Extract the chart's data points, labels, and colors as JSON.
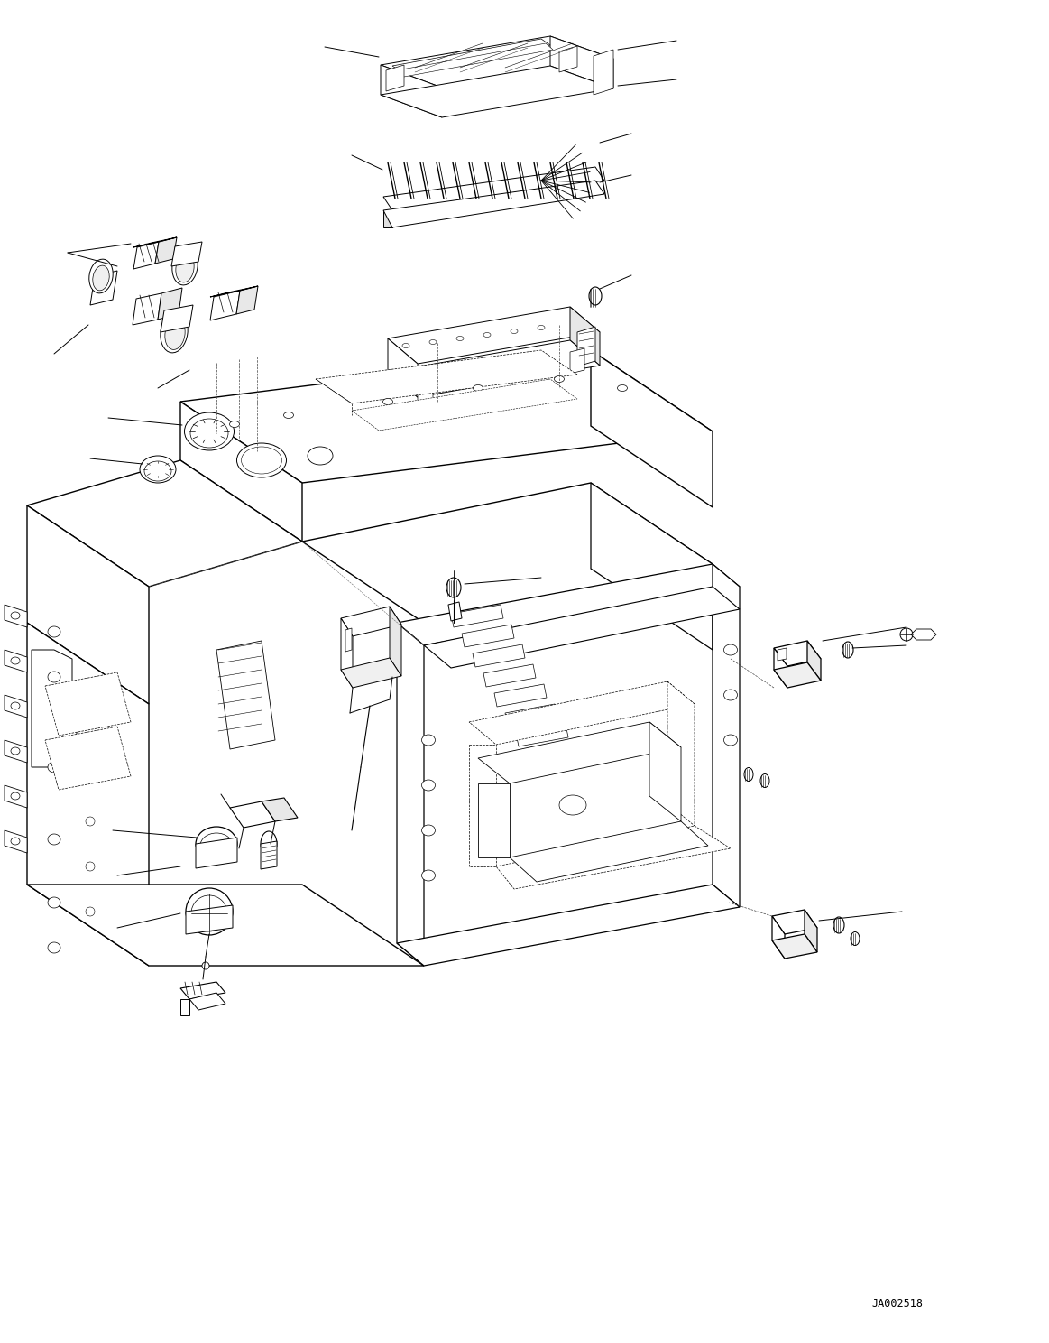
{
  "figure_width": 11.63,
  "figure_height": 14.88,
  "dpi": 100,
  "background_color": "#ffffff",
  "line_color": "#000000",
  "lw": 0.7,
  "watermark_text": "JA002518",
  "watermark_fontsize": 8.5,
  "watermark_family": "monospace"
}
